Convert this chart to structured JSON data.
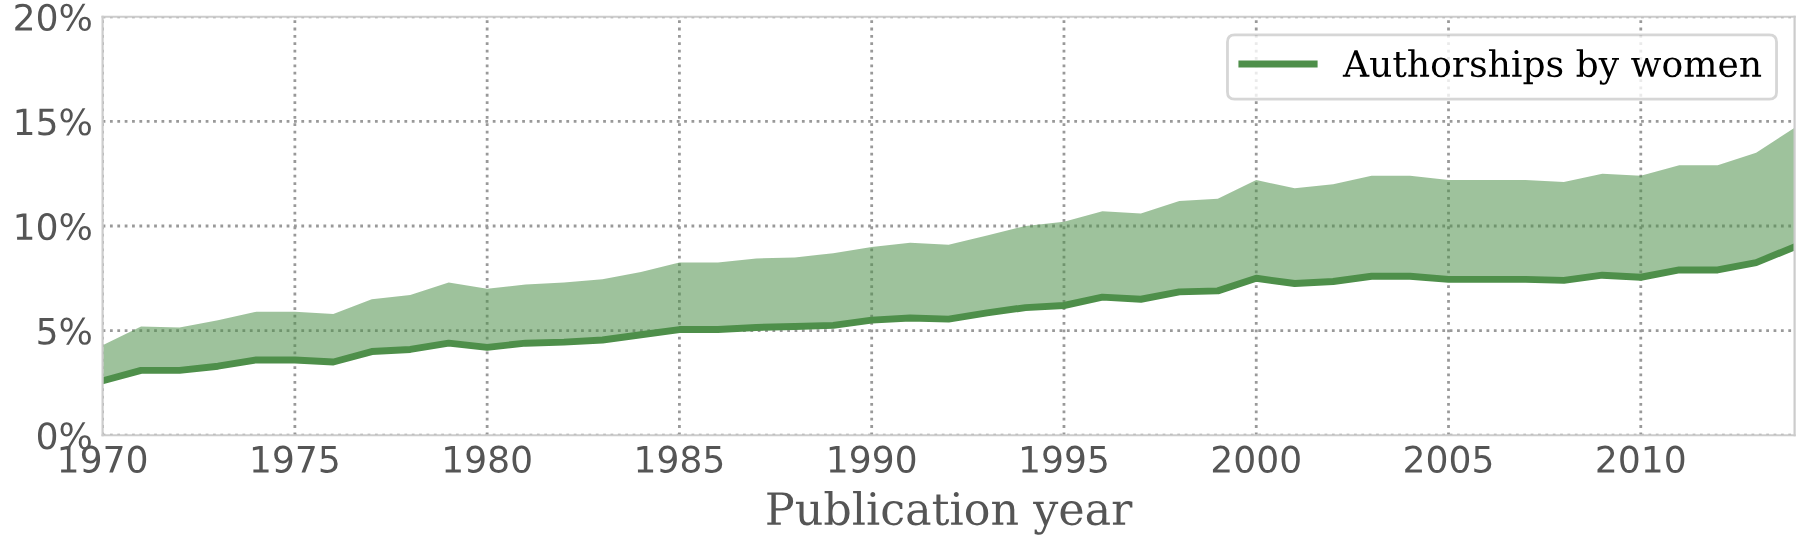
{
  "chart_data": {
    "type": "line",
    "xlabel": "Publication year",
    "x": [
      1970,
      1971,
      1972,
      1973,
      1974,
      1975,
      1976,
      1977,
      1978,
      1979,
      1980,
      1981,
      1982,
      1983,
      1984,
      1985,
      1986,
      1987,
      1988,
      1989,
      1990,
      1991,
      1992,
      1993,
      1994,
      1995,
      1996,
      1997,
      1998,
      1999,
      2000,
      2001,
      2002,
      2003,
      2004,
      2005,
      2006,
      2007,
      2008,
      2009,
      2010,
      2011,
      2012,
      2013,
      2014
    ],
    "series": [
      {
        "name": "Authorships by women",
        "color": "#4e8f4a",
        "values": [
          2.6,
          3.1,
          3.1,
          3.3,
          3.6,
          3.6,
          3.5,
          4.0,
          4.1,
          4.4,
          4.2,
          4.4,
          4.45,
          4.55,
          4.8,
          5.05,
          5.05,
          5.15,
          5.2,
          5.25,
          5.5,
          5.6,
          5.55,
          5.85,
          6.1,
          6.2,
          6.6,
          6.5,
          6.85,
          6.9,
          7.5,
          7.25,
          7.35,
          7.6,
          7.6,
          7.45,
          7.45,
          7.45,
          7.4,
          7.65,
          7.55,
          7.9,
          7.9,
          8.25,
          9.0
        ],
        "lower": [
          2.6,
          3.1,
          3.1,
          3.3,
          3.6,
          3.6,
          3.5,
          4.0,
          4.1,
          4.4,
          4.2,
          4.4,
          4.45,
          4.55,
          4.8,
          5.05,
          5.05,
          5.15,
          5.2,
          5.25,
          5.5,
          5.6,
          5.55,
          5.85,
          6.1,
          6.2,
          6.6,
          6.5,
          6.85,
          6.9,
          7.5,
          7.25,
          7.35,
          7.6,
          7.6,
          7.45,
          7.45,
          7.45,
          7.4,
          7.65,
          7.55,
          7.9,
          7.9,
          8.25,
          9.0
        ],
        "upper": [
          4.3,
          5.2,
          5.15,
          5.5,
          5.9,
          5.9,
          5.8,
          6.5,
          6.7,
          7.3,
          7.0,
          7.2,
          7.3,
          7.45,
          7.8,
          8.25,
          8.25,
          8.45,
          8.5,
          8.7,
          9.0,
          9.2,
          9.1,
          9.55,
          10.0,
          10.2,
          10.7,
          10.6,
          11.2,
          11.3,
          12.2,
          11.8,
          12.0,
          12.4,
          12.4,
          12.2,
          12.2,
          12.2,
          12.1,
          12.5,
          12.4,
          12.9,
          12.9,
          13.5,
          14.7
        ]
      }
    ],
    "xlim": [
      1970,
      2014
    ],
    "xticks": [
      1970,
      1975,
      1980,
      1985,
      1990,
      1995,
      2000,
      2005,
      2010
    ],
    "ylim": [
      0,
      20
    ],
    "yticks": [
      {
        "value": 0,
        "label": "0%"
      },
      {
        "value": 5,
        "label": "5%"
      },
      {
        "value": 10,
        "label": "10%"
      },
      {
        "value": 15,
        "label": "15%"
      },
      {
        "value": 20,
        "label": "20%"
      }
    ],
    "grid": true,
    "legend": "top right",
    "line_style": "solid",
    "marker": "none"
  }
}
